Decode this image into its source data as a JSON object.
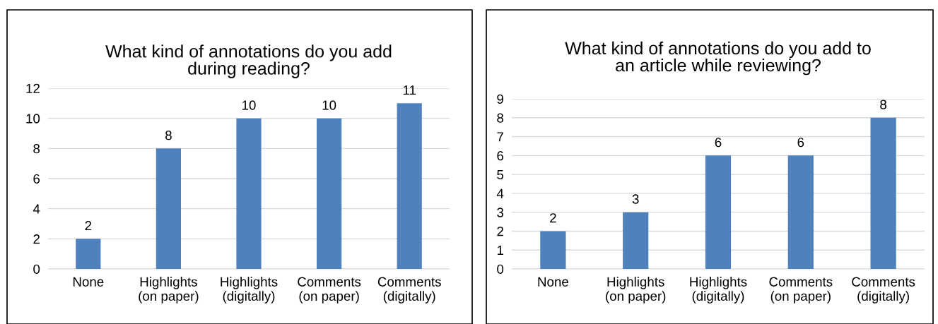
{
  "chart_data": [
    {
      "type": "bar",
      "title": "What kind of annotations do you add\nduring reading?",
      "categories": [
        "None",
        "Highlights\n(on paper)",
        "Highlights\n(digitally)",
        "Comments\n(on paper)",
        "Comments\n(digitally)"
      ],
      "values": [
        2,
        8,
        10,
        10,
        11
      ],
      "color": "#4f81bd",
      "ylim": [
        0,
        12
      ],
      "yticks": [
        0,
        2,
        4,
        6,
        8,
        10,
        12
      ],
      "grid": "y",
      "data_labels": true
    },
    {
      "type": "bar",
      "title": "What kind of annotations do you add to\nan article while reviewing?",
      "categories": [
        "None",
        "Highlights\n(on paper)",
        "Highlights\n(digitally)",
        "Comments\n(on paper)",
        "Comments\n(digitally)"
      ],
      "values": [
        2,
        3,
        6,
        6,
        8
      ],
      "color": "#4f81bd",
      "ylim": [
        0,
        9
      ],
      "yticks": [
        0,
        1,
        2,
        3,
        4,
        5,
        6,
        7,
        8,
        9
      ],
      "grid": "y",
      "data_labels": true
    }
  ]
}
